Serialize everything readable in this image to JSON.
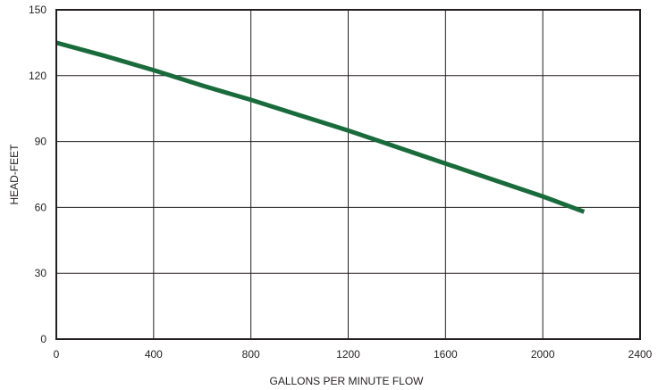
{
  "chart_data": {
    "type": "line",
    "title": "",
    "xlabel": "GALLONS PER MINUTE FLOW",
    "ylabel": "HEAD-FEET",
    "xlim": [
      0,
      2400
    ],
    "ylim": [
      0,
      150
    ],
    "xticks": [
      0,
      400,
      800,
      1200,
      1600,
      2000,
      2400
    ],
    "yticks": [
      0,
      30,
      60,
      90,
      120,
      150
    ],
    "xtick_labels": [
      "0",
      "400",
      "800",
      "1200",
      "1600",
      "2000",
      "2400"
    ],
    "ytick_labels": [
      "0",
      "30",
      "60",
      "90",
      "120",
      "150"
    ],
    "grid": true,
    "legend": "none",
    "series": [
      {
        "color": "#1a6b3c",
        "x": [
          0,
          200,
          400,
          600,
          800,
          1000,
          1200,
          1400,
          1600,
          1800,
          2000,
          2170
        ],
        "y": [
          135,
          129,
          122.5,
          115.5,
          109,
          102,
          95,
          87.5,
          80,
          72.5,
          65,
          58
        ]
      }
    ]
  }
}
